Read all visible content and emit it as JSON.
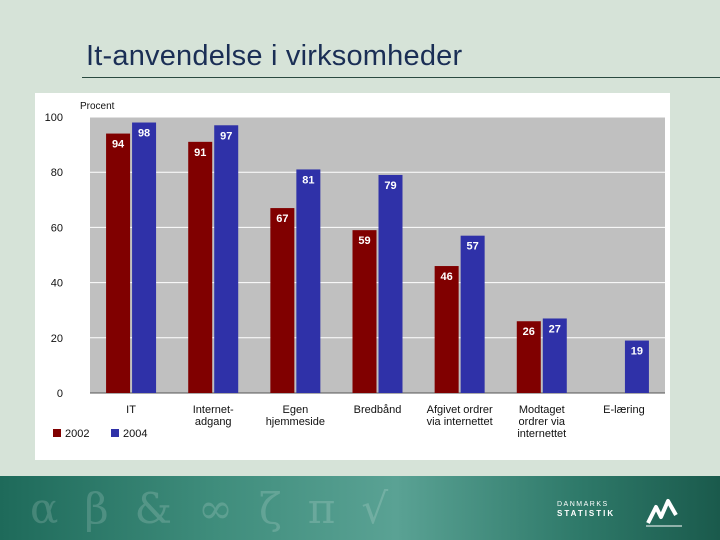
{
  "slide": {
    "title": "It-anvendelse i virksomheder"
  },
  "logo": {
    "line1": "DANMARKS",
    "line2": "STATISTIK"
  },
  "footer_decoration": "αβ&∞ζπ√",
  "colors": {
    "series2002": "#800000",
    "series2004": "#2f31a8",
    "plot_bg": "#c0c0c0",
    "text": "#111111"
  },
  "chart_data": {
    "type": "bar",
    "title": "",
    "ylabel": "Procent",
    "ylim": [
      0,
      100
    ],
    "yticks": [
      0,
      20,
      40,
      60,
      80,
      100
    ],
    "categories": [
      [
        "IT"
      ],
      [
        "Internet-",
        "adgang"
      ],
      [
        "Egen",
        "hjemmeside"
      ],
      [
        "Bredbånd"
      ],
      [
        "Afgivet ordrer",
        "via internettet"
      ],
      [
        "Modtaget",
        "ordrer via",
        "internettet"
      ],
      [
        "E-læring"
      ]
    ],
    "series": [
      {
        "name": "2002",
        "values": [
          94,
          91,
          67,
          59,
          46,
          26,
          null
        ]
      },
      {
        "name": "2004",
        "values": [
          98,
          97,
          81,
          79,
          57,
          27,
          19
        ]
      }
    ],
    "legend_position": "bottom-left",
    "grid": true
  }
}
